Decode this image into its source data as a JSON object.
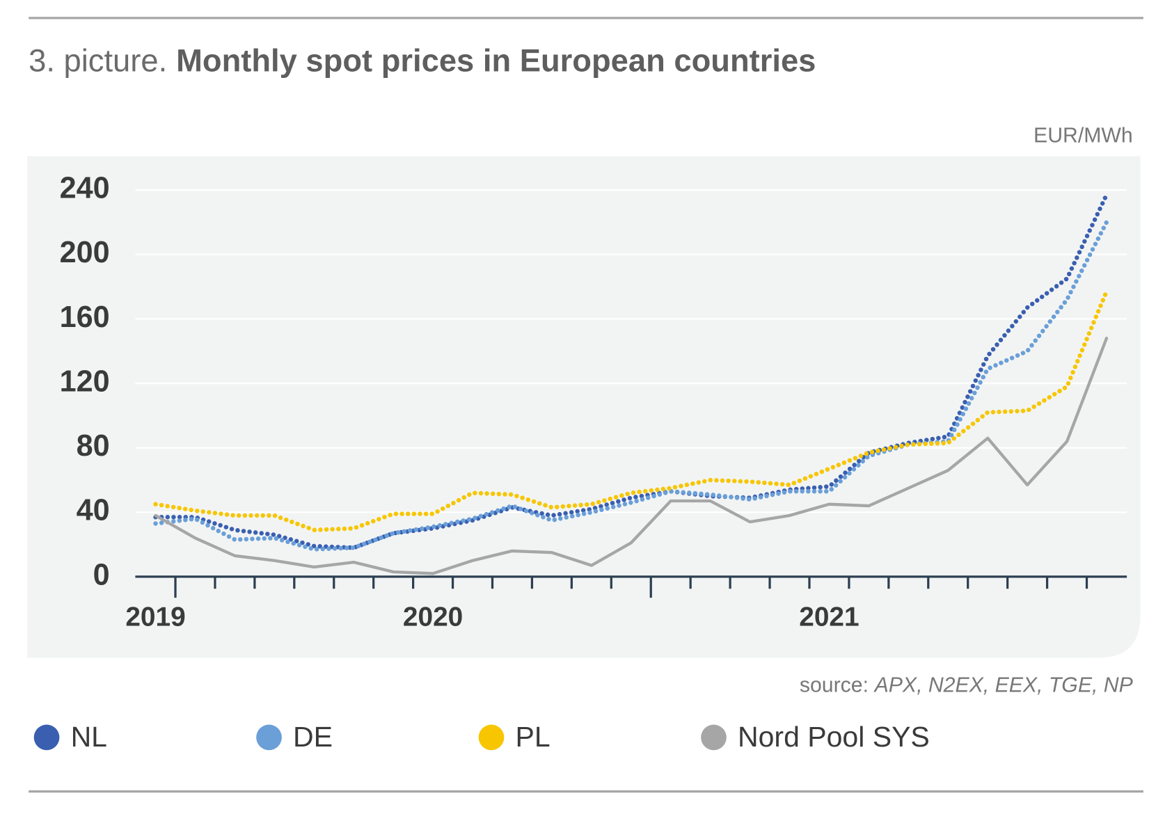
{
  "chart_data": {
    "type": "line",
    "title_prefix": "3. picture.",
    "title": "Monthly spot prices in European countries",
    "unit_label": "EUR/MWh",
    "source_label": "source:",
    "source_names": "APX, N2EX, EEX, TGE, NP",
    "categories": [
      "2019",
      null,
      null,
      null,
      null,
      null,
      null,
      "2020",
      null,
      null,
      null,
      null,
      null,
      null,
      null,
      null,
      null,
      "2021",
      null,
      null,
      null,
      null,
      null,
      null,
      null
    ],
    "ylim": [
      0,
      240
    ],
    "yticks": [
      0,
      40,
      80,
      120,
      160,
      200,
      240
    ],
    "grid": true,
    "series": [
      {
        "name": "NL",
        "color": "#3a5fb0",
        "style": "dotted",
        "values": [
          37,
          37,
          29,
          26,
          19,
          18,
          27,
          30,
          35,
          43,
          38,
          42,
          49,
          53,
          50,
          49,
          54,
          56,
          77,
          83,
          87,
          137,
          167,
          185,
          237
        ]
      },
      {
        "name": "DE",
        "color": "#6a9fd8",
        "style": "dotted",
        "values": [
          33,
          36,
          23,
          24,
          17,
          18,
          27,
          31,
          36,
          44,
          35,
          40,
          46,
          53,
          51,
          48,
          53,
          53,
          75,
          82,
          84,
          129,
          140,
          172,
          220
        ]
      },
      {
        "name": "PL",
        "color": "#f7c600",
        "style": "dotted",
        "values": [
          45,
          41,
          38,
          38,
          29,
          30,
          39,
          39,
          52,
          51,
          43,
          45,
          52,
          55,
          60,
          59,
          57,
          67,
          77,
          82,
          83,
          102,
          103,
          118,
          177
        ]
      },
      {
        "name": "Nord Pool SYS",
        "color": "#a6a6a6",
        "style": "solid",
        "values": [
          38,
          24,
          13,
          10,
          6,
          9,
          3,
          2,
          10,
          16,
          15,
          7,
          21,
          47,
          47,
          34,
          38,
          45,
          44,
          55,
          66,
          86,
          57,
          84,
          148
        ]
      }
    ]
  }
}
